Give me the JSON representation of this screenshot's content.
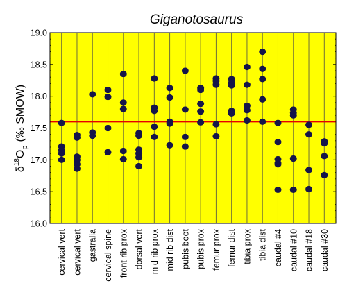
{
  "chart_data": {
    "type": "scatter",
    "title": "Giganotosaurus",
    "ylabel": "δ18Op (‰ SMOW)",
    "ylabel_parts": {
      "delta": "δ",
      "sup": "18",
      "base": "O",
      "sub": "p",
      "unit": "(‰ SMOW)"
    },
    "ylim": [
      16.0,
      19.0
    ],
    "yticks": [
      "16.0",
      "16.5",
      "17.0",
      "17.5",
      "18.0",
      "18.5",
      "19.0"
    ],
    "reference_line": 17.6,
    "grid": "vertical lines at categories",
    "categories": [
      "cervical vert",
      "cervical vert",
      "gastralia",
      "cervical spine",
      "front rib prox",
      "dorsal vert",
      "mid rib prox",
      "mid rib dist",
      "pubis boot",
      "pubis prox",
      "femur prox",
      "femur dist",
      "tibia prox",
      "tibia dist",
      "caudal #4",
      "caudal #10",
      "caudal #18",
      "caudal #30"
    ],
    "series": [
      {
        "values": [
          [
            17.58,
            17.21,
            17.15,
            17.1,
            17.0
          ],
          [
            17.39,
            17.35,
            17.05,
            17.0,
            16.93,
            16.86
          ],
          [
            18.03,
            17.43,
            17.38
          ],
          [
            18.1,
            17.99,
            17.5,
            17.12
          ],
          [
            18.35,
            17.9,
            17.8,
            17.14,
            17.01
          ],
          [
            17.42,
            17.38,
            17.16,
            17.1,
            17.04,
            16.9
          ],
          [
            18.28,
            17.82,
            17.77,
            17.52,
            17.36
          ],
          [
            18.13,
            17.98,
            17.6,
            17.57,
            17.23
          ],
          [
            18.4,
            17.79,
            17.36,
            17.21
          ],
          [
            18.13,
            18.1,
            17.88,
            17.76,
            17.59
          ],
          [
            18.28,
            18.24,
            18.18,
            17.56,
            17.37
          ],
          [
            18.27,
            18.21,
            18.17,
            17.77,
            17.73
          ],
          [
            18.46,
            18.18,
            17.85,
            17.78,
            17.62
          ],
          [
            18.7,
            18.43,
            18.27,
            17.95,
            17.6
          ],
          [
            17.58,
            17.28,
            17.01,
            16.95,
            16.93,
            16.53
          ],
          [
            17.79,
            17.74,
            17.7,
            17.02,
            16.53
          ],
          [
            17.55,
            17.4,
            16.84,
            16.54
          ],
          [
            17.29,
            17.26,
            17.06,
            16.76
          ]
        ]
      }
    ],
    "colors": {
      "plot_background": "#ffff00",
      "points": "#15154a",
      "reference_line": "#e60000",
      "grid": "#6e6e3a"
    }
  }
}
